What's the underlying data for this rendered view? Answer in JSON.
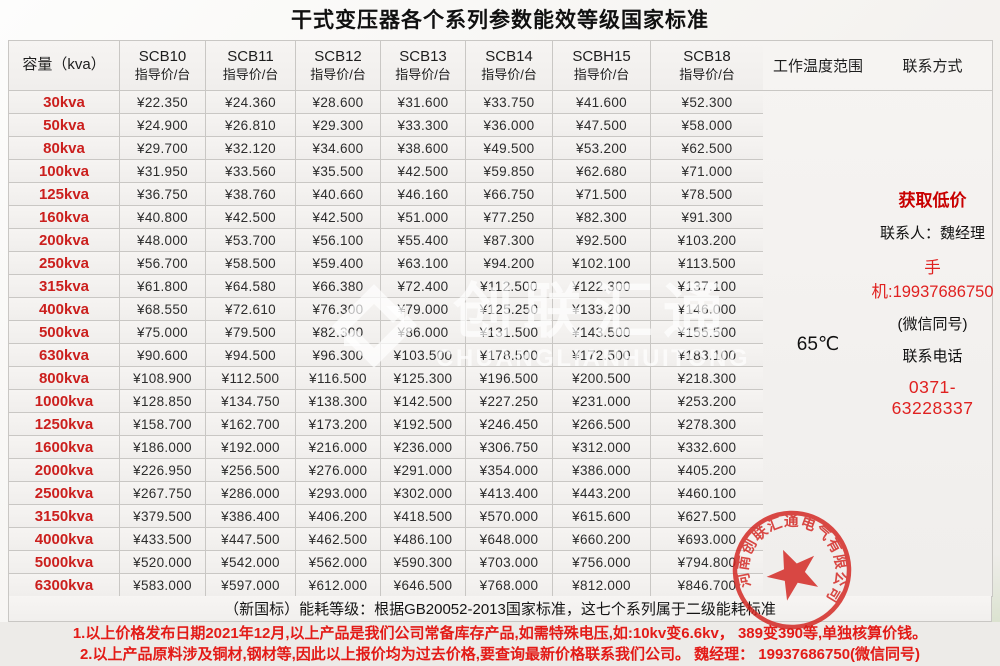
{
  "title": "干式变压器各个系列参数能效等级国家标准",
  "table": {
    "capacity_header": "容量（kva）",
    "series_headers": [
      {
        "name": "SCB10",
        "sub": "指导价/台"
      },
      {
        "name": "SCB11",
        "sub": "指导价/台"
      },
      {
        "name": "SCB12",
        "sub": "指导价/台"
      },
      {
        "name": "SCB13",
        "sub": "指导价/台"
      },
      {
        "name": "SCB14",
        "sub": "指导价/台"
      },
      {
        "name": "SCBH15",
        "sub": "指导价/台"
      },
      {
        "name": "SCB18",
        "sub": "指导价/台"
      }
    ],
    "temp_header": "工作温度范围",
    "temp_value": "65℃",
    "contact_header": "联系方式",
    "rows": [
      {
        "capacity": "30kva",
        "prices": [
          "¥22.350",
          "¥24.360",
          "¥28.600",
          "¥31.600",
          "¥33.750",
          "¥41.600",
          "¥52.300"
        ]
      },
      {
        "capacity": "50kva",
        "prices": [
          "¥24.900",
          "¥26.810",
          "¥29.300",
          "¥33.300",
          "¥36.000",
          "¥47.500",
          "¥58.000"
        ]
      },
      {
        "capacity": "80kva",
        "prices": [
          "¥29.700",
          "¥32.120",
          "¥34.600",
          "¥38.600",
          "¥49.500",
          "¥53.200",
          "¥62.500"
        ]
      },
      {
        "capacity": "100kva",
        "prices": [
          "¥31.950",
          "¥33.560",
          "¥35.500",
          "¥42.500",
          "¥59.850",
          "¥62.680",
          "¥71.000"
        ]
      },
      {
        "capacity": "125kva",
        "prices": [
          "¥36.750",
          "¥38.760",
          "¥40.660",
          "¥46.160",
          "¥66.750",
          "¥71.500",
          "¥78.500"
        ]
      },
      {
        "capacity": "160kva",
        "prices": [
          "¥40.800",
          "¥42.500",
          "¥42.500",
          "¥51.000",
          "¥77.250",
          "¥82.300",
          "¥91.300"
        ]
      },
      {
        "capacity": "200kva",
        "prices": [
          "¥48.000",
          "¥53.700",
          "¥56.100",
          "¥55.400",
          "¥87.300",
          "¥92.500",
          "¥103.200"
        ]
      },
      {
        "capacity": "250kva",
        "prices": [
          "¥56.700",
          "¥58.500",
          "¥59.400",
          "¥63.100",
          "¥94.200",
          "¥102.100",
          "¥113.500"
        ]
      },
      {
        "capacity": "315kva",
        "prices": [
          "¥61.800",
          "¥64.580",
          "¥66.380",
          "¥72.400",
          "¥112.500",
          "¥122.300",
          "¥137.100"
        ]
      },
      {
        "capacity": "400kva",
        "prices": [
          "¥68.550",
          "¥72.610",
          "¥76.300",
          "¥79.000",
          "¥125.250",
          "¥133.200",
          "¥146.000"
        ]
      },
      {
        "capacity": "500kva",
        "prices": [
          "¥75.000",
          "¥79.500",
          "¥82.300",
          "¥86.000",
          "¥131.500",
          "¥143.500",
          "¥155.500"
        ]
      },
      {
        "capacity": "630kva",
        "prices": [
          "¥90.600",
          "¥94.500",
          "¥96.300",
          "¥103.500",
          "¥178.500",
          "¥172.500",
          "¥183.100"
        ]
      },
      {
        "capacity": "800kva",
        "prices": [
          "¥108.900",
          "¥112.500",
          "¥116.500",
          "¥125.300",
          "¥196.500",
          "¥200.500",
          "¥218.300"
        ]
      },
      {
        "capacity": "1000kva",
        "prices": [
          "¥128.850",
          "¥134.750",
          "¥138.300",
          "¥142.500",
          "¥227.250",
          "¥231.000",
          "¥253.200"
        ]
      },
      {
        "capacity": "1250kva",
        "prices": [
          "¥158.700",
          "¥162.700",
          "¥173.200",
          "¥192.500",
          "¥246.450",
          "¥266.500",
          "¥278.300"
        ]
      },
      {
        "capacity": "1600kva",
        "prices": [
          "¥186.000",
          "¥192.000",
          "¥216.000",
          "¥236.000",
          "¥306.750",
          "¥312.000",
          "¥332.600"
        ]
      },
      {
        "capacity": "2000kva",
        "prices": [
          "¥226.950",
          "¥256.500",
          "¥276.000",
          "¥291.000",
          "¥354.000",
          "¥386.000",
          "¥405.200"
        ]
      },
      {
        "capacity": "2500kva",
        "prices": [
          "¥267.750",
          "¥286.000",
          "¥293.000",
          "¥302.000",
          "¥413.400",
          "¥443.200",
          "¥460.100"
        ]
      },
      {
        "capacity": "3150kva",
        "prices": [
          "¥379.500",
          "¥386.400",
          "¥406.200",
          "¥418.500",
          "¥570.000",
          "¥615.600",
          "¥627.500"
        ]
      },
      {
        "capacity": "4000kva",
        "prices": [
          "¥433.500",
          "¥447.500",
          "¥462.500",
          "¥486.100",
          "¥648.000",
          "¥660.200",
          "¥693.000"
        ]
      },
      {
        "capacity": "5000kva",
        "prices": [
          "¥520.000",
          "¥542.000",
          "¥562.000",
          "¥590.300",
          "¥703.000",
          "¥756.000",
          "¥794.800"
        ]
      },
      {
        "capacity": "6300kva",
        "prices": [
          "¥583.000",
          "¥597.000",
          "¥612.000",
          "¥646.500",
          "¥768.000",
          "¥812.000",
          "¥846.700"
        ]
      }
    ]
  },
  "contact": {
    "promo": "获取低价",
    "person": "联系人：魏经理",
    "mobile": "手机:19937686750",
    "wechat_note": "(微信同号)",
    "phone_label": "联系电话",
    "phone": "0371-63228337"
  },
  "notes": {
    "standard": "（新国标）能耗等级：根据GB20052-2013国家标准，这七个系列属于二级能耗标准",
    "line1": "1.以上价格发布日期2021年12月,以上产品是我们公司常备库存产品,如需特殊电压,如:10kv变6.6kv， 389变390等,单独核算价钱。",
    "line2": "2.以上产品原料涉及铜材,钢材等,因此以上报价均为过去价格,要查询最新价格联系我们公司。 魏经理： 19937686750(微信同号)"
  },
  "watermark": {
    "text": "创联汇通",
    "subtext": "CHUANGLIANHUITONG"
  },
  "stamp": {
    "company": "河南创联汇通电气有限公司"
  },
  "colors": {
    "accent_red": "#e02120",
    "capacity_red": "#cb1f1d",
    "stamp_red": "#d3231e"
  }
}
